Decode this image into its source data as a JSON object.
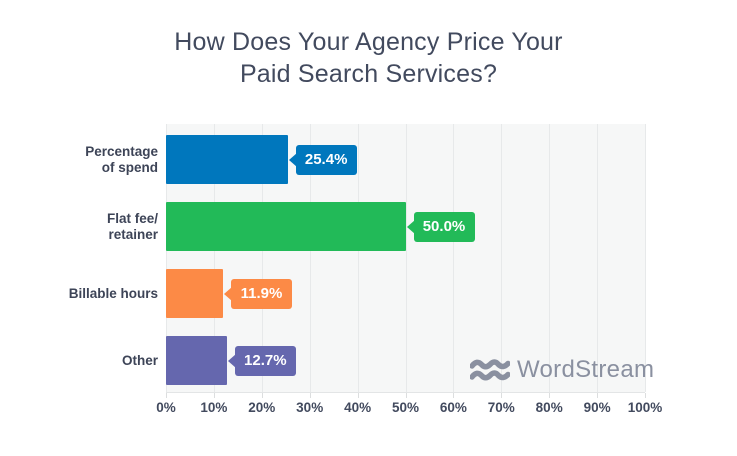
{
  "title": {
    "line1": "How Does Your Agency Price Your",
    "line2": "Paid Search Services?"
  },
  "chart_data": {
    "type": "bar",
    "orientation": "horizontal",
    "title": "How Does Your Agency Price Your Paid Search Services?",
    "categories": [
      "Percentage of spend",
      "Flat fee/ retainer",
      "Billable hours",
      "Other"
    ],
    "category_lines": [
      [
        "Percentage",
        "of spend"
      ],
      [
        "Flat fee/",
        "retainer"
      ],
      [
        "Billable hours"
      ],
      [
        "Other"
      ]
    ],
    "values": [
      25.4,
      50.0,
      11.9,
      12.7
    ],
    "value_labels": [
      "25.4%",
      "50.0%",
      "11.9%",
      "12.7%"
    ],
    "bar_colors": [
      "#0077bd",
      "#22ba58",
      "#fc8a46",
      "#6567ae"
    ],
    "x_ticks": [
      "0%",
      "10%",
      "20%",
      "30%",
      "40%",
      "50%",
      "60%",
      "70%",
      "80%",
      "90%",
      "100%"
    ],
    "xlim": [
      0,
      100
    ],
    "xlabel": "",
    "ylabel": "",
    "grid": "vertical",
    "legend": "none",
    "plot_background": "#f6f7f7",
    "text_color": "#424a5e"
  },
  "watermark": {
    "text": "WordStream",
    "icon": "wordstream-waves-icon",
    "color": "#8a90a0"
  }
}
